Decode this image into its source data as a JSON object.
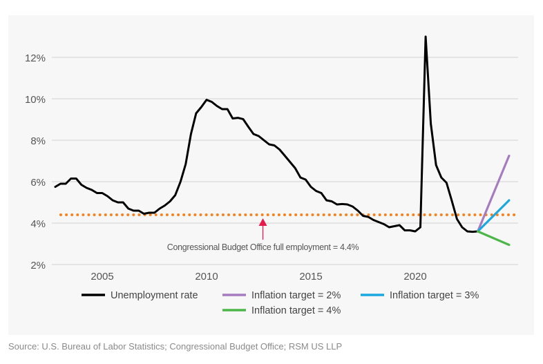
{
  "chart_data": {
    "type": "line",
    "title": "",
    "xlabel": "",
    "ylabel": "",
    "xlim": [
      2002.5,
      2024.8
    ],
    "ylim": [
      2,
      13
    ],
    "yticks": [
      2,
      4,
      6,
      8,
      10,
      12
    ],
    "ytick_labels": [
      "2%",
      "4%",
      "6%",
      "8%",
      "10%",
      "12%"
    ],
    "xticks": [
      2005,
      2010,
      2015,
      2020
    ],
    "xtick_labels": [
      "2005",
      "2010",
      "2015",
      "2020"
    ],
    "grid": "horizontal",
    "legend_placement": "bottom",
    "series": [
      {
        "name": "Unemployment rate",
        "color": "#000000",
        "x_start": 2002.75,
        "x_step": 0.25,
        "values": [
          5.75,
          5.9,
          5.9,
          6.15,
          6.15,
          5.85,
          5.7,
          5.6,
          5.45,
          5.45,
          5.3,
          5.1,
          5.0,
          5.0,
          4.7,
          4.6,
          4.6,
          4.45,
          4.5,
          4.5,
          4.7,
          4.85,
          5.05,
          5.35,
          6.0,
          6.85,
          8.3,
          9.3,
          9.6,
          9.95,
          9.85,
          9.65,
          9.5,
          9.5,
          9.05,
          9.08,
          9.02,
          8.65,
          8.3,
          8.2,
          8.0,
          7.8,
          7.75,
          7.55,
          7.25,
          6.95,
          6.65,
          6.2,
          6.1,
          5.75,
          5.55,
          5.45,
          5.1,
          5.05,
          4.9,
          4.92,
          4.9,
          4.8,
          4.6,
          4.35,
          4.3,
          4.15,
          4.05,
          3.95,
          3.8,
          3.85,
          3.9,
          3.65,
          3.65,
          3.6,
          3.8,
          13.0,
          8.8,
          6.8,
          6.2,
          5.95,
          5.1,
          4.2,
          3.8,
          3.6,
          3.58,
          3.6
        ]
      },
      {
        "name": "Inflation target = 2%",
        "color": "#a57cbf",
        "x": [
          2023.0,
          2024.5
        ],
        "values": [
          3.6,
          7.25
        ]
      },
      {
        "name": "Inflation target = 3%",
        "color": "#1ba7df",
        "x": [
          2023.0,
          2024.5
        ],
        "values": [
          3.6,
          5.1
        ]
      },
      {
        "name": "Inflation target = 4%",
        "color": "#4cb748",
        "x": [
          2023.0,
          2024.5
        ],
        "values": [
          3.6,
          2.95
        ]
      }
    ],
    "reference_line": {
      "value": 4.4,
      "color": "#f58220",
      "style": "dotted"
    },
    "annotation": {
      "text": "Congressional Budget Office full employment = 4.4%",
      "x": 2012.7,
      "arrow_color": "#e8194b"
    }
  },
  "source": "Source: U.S. Bureau of Labor Statistics; Congressional Budget Office; RSM US LLP"
}
